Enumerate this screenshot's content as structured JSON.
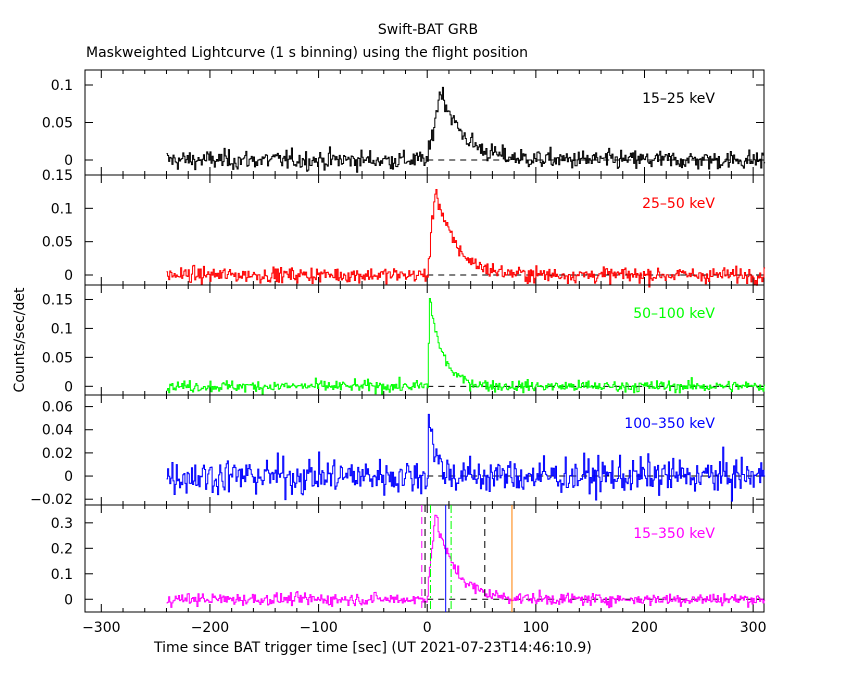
{
  "header": {
    "title": "Swift-BAT GRB",
    "subtitle": "Maskweighted Lightcurve (1 s binning) using the flight position"
  },
  "axes": {
    "xlabel": "Time since BAT trigger time [sec] (UT 2021-07-23T14:46:10.9)",
    "ylabel": "Counts/sec/det"
  },
  "chart_data": {
    "type": "line",
    "x": {
      "start": -240,
      "end": 310,
      "step": 1,
      "unit": "s"
    },
    "xlim": [
      -315,
      310
    ],
    "xticks": [
      -300,
      -200,
      -100,
      0,
      100,
      200,
      300
    ],
    "panels": [
      {
        "name": "15-25 keV",
        "color": "#000000",
        "ylim": [
          -0.02,
          0.12
        ],
        "yticks": [
          0,
          0.05,
          0.1
        ],
        "noise_sigma": 0.009,
        "pulse": {
          "onset": 0,
          "peak": 0.095,
          "rise": 12,
          "decay": 20
        }
      },
      {
        "name": "25-50 keV",
        "color": "#ff0000",
        "ylim": [
          -0.015,
          0.15
        ],
        "yticks": [
          0,
          0.05,
          0.1,
          0.15
        ],
        "noise_sigma": 0.008,
        "pulse": {
          "onset": 0,
          "peak": 0.13,
          "rise": 7,
          "decay": 18
        }
      },
      {
        "name": "50-100 keV",
        "color": "#00ff00",
        "ylim": [
          -0.015,
          0.175
        ],
        "yticks": [
          0,
          0.05,
          0.1,
          0.15
        ],
        "noise_sigma": 0.007,
        "pulse": {
          "onset": 0,
          "peak": 0.15,
          "rise": 2,
          "decay": 12
        }
      },
      {
        "name": "100-350 keV",
        "color": "#0000ff",
        "ylim": [
          -0.025,
          0.07
        ],
        "yticks": [
          -0.02,
          0,
          0.02,
          0.04,
          0.06
        ],
        "noise_sigma": 0.011,
        "pulse": {
          "onset": 0,
          "peak": 0.055,
          "rise": 1,
          "decay": 6
        }
      },
      {
        "name": "15-350 keV",
        "color": "#ff00ff",
        "ylim": [
          -0.05,
          0.37
        ],
        "yticks": [
          0,
          0.1,
          0.2,
          0.3
        ],
        "noise_sigma": 0.017,
        "pulse": {
          "onset": -1,
          "peak": 0.33,
          "rise": 8,
          "decay": 18
        },
        "markers": [
          {
            "x": -5,
            "color": "#ff00ff",
            "style": "dashed"
          },
          {
            "x": -2,
            "color": "#000000",
            "style": "dashed"
          },
          {
            "x": 3,
            "color": "#00ff00",
            "style": "dashdot"
          },
          {
            "x": 17,
            "color": "#0000ff",
            "style": "solid"
          },
          {
            "x": 22,
            "color": "#00ff00",
            "style": "dashdot"
          },
          {
            "x": 53,
            "color": "#000000",
            "style": "dashed"
          },
          {
            "x": 78,
            "color": "#ff7f00",
            "style": "solid"
          }
        ]
      }
    ]
  }
}
